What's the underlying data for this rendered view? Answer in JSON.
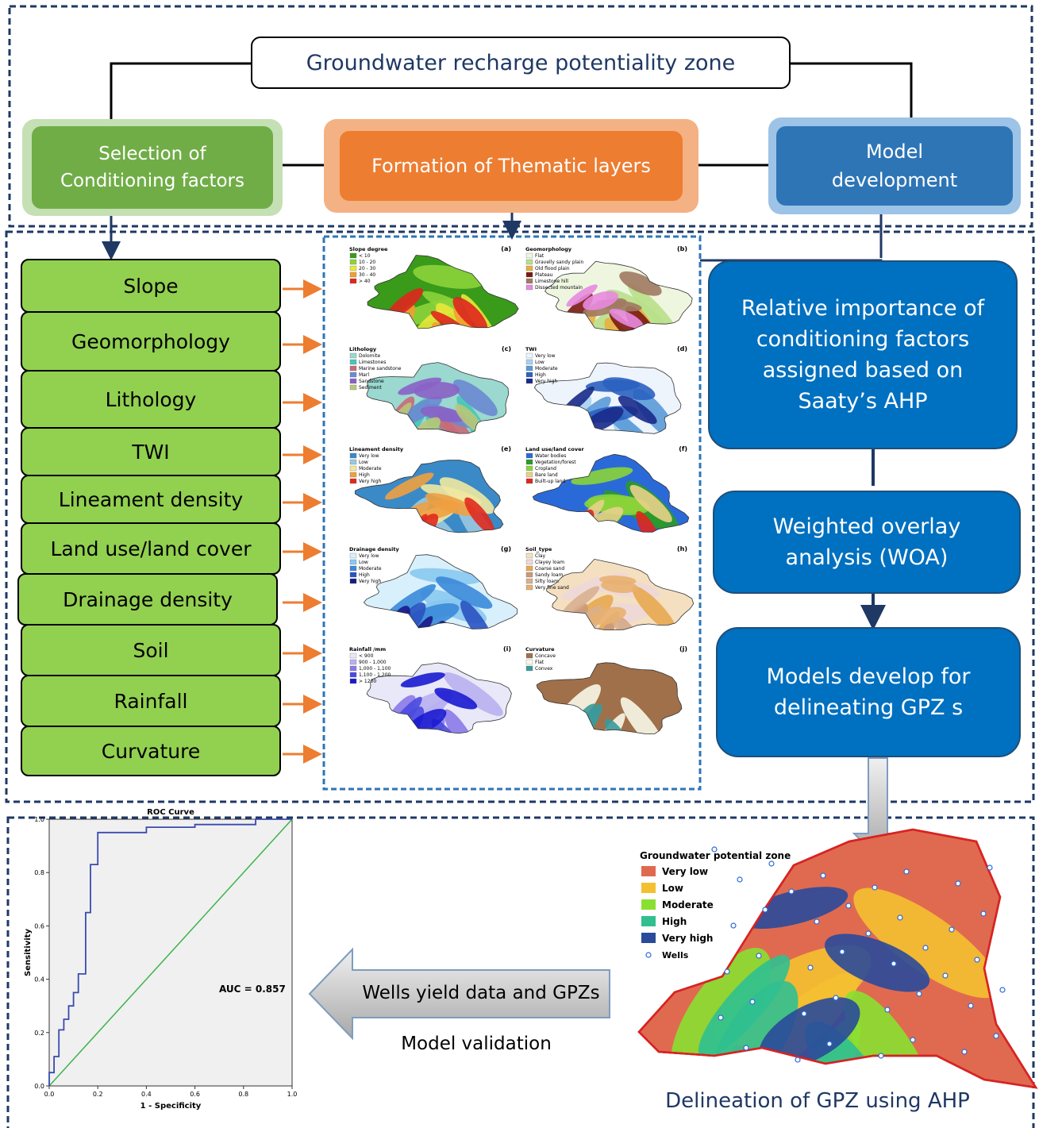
{
  "header": {
    "title": "Groundwater recharge potentiality zone"
  },
  "steps": [
    "Selection of Conditioning factors",
    "Formation of Thematic layers",
    "Model development"
  ],
  "factors": [
    "Slope",
    "Geomorphology",
    "Lithology",
    "TWI",
    "Lineament density",
    "Land use/land cover",
    "Drainage density",
    "Soil",
    "Rainfall",
    "Curvature"
  ],
  "maps": [
    {
      "label": "(a)",
      "legend_title": "Slope degree",
      "items": [
        {
          "label": "< 10",
          "color": "#3a9a1a"
        },
        {
          "label": "10 - 20",
          "color": "#8cd43a"
        },
        {
          "label": "20 - 30",
          "color": "#e8e83a"
        },
        {
          "label": "30 - 40",
          "color": "#f0a030"
        },
        {
          "label": "> 40",
          "color": "#e0261e"
        }
      ]
    },
    {
      "label": "(b)",
      "legend_title": "Geomorphology",
      "items": [
        {
          "label": "Flat",
          "color": "#eef6e0"
        },
        {
          "label": "Gravelly sandy plain",
          "color": "#b8e08a"
        },
        {
          "label": "Old flood plain",
          "color": "#e8b040"
        },
        {
          "label": "Plateau",
          "color": "#7a1a14"
        },
        {
          "label": "Limestone hill",
          "color": "#a07a62"
        },
        {
          "label": "Dissected mountain",
          "color": "#e88ae0"
        }
      ]
    },
    {
      "label": "(c)",
      "legend_title": "Lithology",
      "items": [
        {
          "label": "Dolomite",
          "color": "#9ad8d0"
        },
        {
          "label": "Limestones",
          "color": "#46c6b8"
        },
        {
          "label": "Marine sandstone",
          "color": "#c86a78"
        },
        {
          "label": "Marl",
          "color": "#6a8ad0"
        },
        {
          "label": "Sandstone",
          "color": "#8a62c6"
        },
        {
          "label": "Sediment",
          "color": "#b8c878"
        }
      ]
    },
    {
      "label": "(d)",
      "legend_title": "TWI",
      "items": [
        {
          "label": "Very low",
          "color": "#eef4fc"
        },
        {
          "label": "Low",
          "color": "#a8d0f0"
        },
        {
          "label": "Moderate",
          "color": "#5a9ad8"
        },
        {
          "label": "High",
          "color": "#2a62c0"
        },
        {
          "label": "Very high",
          "color": "#1a2a8a"
        }
      ]
    },
    {
      "label": "(e)",
      "legend_title": "Lineament density",
      "items": [
        {
          "label": "Very low",
          "color": "#3a8ac8"
        },
        {
          "label": "Low",
          "color": "#9ac8e0"
        },
        {
          "label": "Moderate",
          "color": "#f0e8a0"
        },
        {
          "label": "High",
          "color": "#f0a040"
        },
        {
          "label": "Very high",
          "color": "#e02a1e"
        }
      ]
    },
    {
      "label": "(f)",
      "legend_title": "Land use/land cover",
      "items": [
        {
          "label": "Water bodies",
          "color": "#2a6ad8"
        },
        {
          "label": "Vegetation/forest",
          "color": "#2a9a2a"
        },
        {
          "label": "Cropland",
          "color": "#8ad43a"
        },
        {
          "label": "Bare land",
          "color": "#e8d08a"
        },
        {
          "label": "Built-up land",
          "color": "#e0261e"
        }
      ]
    },
    {
      "label": "(g)",
      "legend_title": "Drainage density",
      "items": [
        {
          "label": "Very low",
          "color": "#d8f0fc"
        },
        {
          "label": "Low",
          "color": "#8ac8f0"
        },
        {
          "label": "Moderate",
          "color": "#3a8ad8"
        },
        {
          "label": "High",
          "color": "#2a52c0"
        },
        {
          "label": "Very high",
          "color": "#1a1a8a"
        }
      ]
    },
    {
      "label": "(h)",
      "legend_title": "Soil_type",
      "items": [
        {
          "label": "Clay",
          "color": "#f4e0c0"
        },
        {
          "label": "Clayey loam",
          "color": "#eed8d8"
        },
        {
          "label": "Coarse sand",
          "color": "#e8a850"
        },
        {
          "label": "Sandy loam",
          "color": "#c89a7a"
        },
        {
          "label": "Silty loam",
          "color": "#d8b090"
        },
        {
          "label": "Very fine sand",
          "color": "#e8b070"
        }
      ]
    },
    {
      "label": "(i)",
      "legend_title": "Rainfall /mm",
      "items": [
        {
          "label": "< 900",
          "color": "#e8e8f8"
        },
        {
          "label": "900 - 1,000",
          "color": "#b8b0f0"
        },
        {
          "label": "1,000 - 1,100",
          "color": "#8a7ae8"
        },
        {
          "label": "1,100 - 1,200",
          "color": "#4a4ae0"
        },
        {
          "label": "> 1200",
          "color": "#1a1ad0"
        }
      ]
    },
    {
      "label": "(j)",
      "legend_title": "Curvature",
      "items": [
        {
          "label": "Concave",
          "color": "#a0704a"
        },
        {
          "label": "Flat",
          "color": "#f8f8e8"
        },
        {
          "label": "Convex",
          "color": "#3a9a9a"
        }
      ]
    }
  ],
  "process": [
    "Relative importance of conditioning factors assigned based on Saaty’s AHP",
    "Weighted overlay analysis (WOA)",
    "Models develop for delineating GPZ s"
  ],
  "validation": {
    "arrow_text": "Wells yield data and GPZs",
    "caption": "Model validation"
  },
  "roc": {
    "title": "ROC Curve",
    "x_label": "1 - Specificity",
    "y_label": "Sensitivity",
    "auc_text": "AUC = 0.857",
    "xlim": [
      0,
      1
    ],
    "ylim": [
      0,
      1
    ],
    "xticks": [
      {
        "value": 0,
        "label": "0.0"
      },
      0.2,
      0.4,
      0.6,
      0.8,
      {
        "value": 1,
        "label": "1.0"
      }
    ],
    "yticks": [
      {
        "value": 0,
        "label": "0.0"
      },
      0.2,
      0.4,
      0.6,
      0.8,
      {
        "value": 1,
        "label": "1.0"
      }
    ],
    "curve": {
      "x": [
        0,
        0,
        0.02,
        0.02,
        0.04,
        0.04,
        0.06,
        0.06,
        0.08,
        0.08,
        0.1,
        0.1,
        0.12,
        0.12,
        0.15,
        0.15,
        0.17,
        0.17,
        0.2,
        0.2,
        0.4,
        0.4,
        0.6,
        0.6,
        0.85,
        0.85,
        1
      ],
      "y": [
        0,
        0.05,
        0.05,
        0.11,
        0.11,
        0.21,
        0.21,
        0.25,
        0.25,
        0.3,
        0.3,
        0.35,
        0.35,
        0.42,
        0.42,
        0.65,
        0.65,
        0.83,
        0.83,
        0.95,
        0.95,
        0.97,
        0.97,
        0.98,
        0.98,
        1,
        1
      ],
      "color": "#3a4ab0"
    }
  },
  "gpz_map": {
    "legend_title": "Groundwater potential zone",
    "items": [
      {
        "label": "Very low",
        "color": "#e06a50"
      },
      {
        "label": "Low",
        "color": "#f4c030"
      },
      {
        "label": "Moderate",
        "color": "#8ae030"
      },
      {
        "label": "High",
        "color": "#30c090"
      },
      {
        "label": "Very high",
        "color": "#2a4a9a"
      }
    ],
    "wells_label": "Wells",
    "caption": "Delineation of GPZ using AHP"
  }
}
